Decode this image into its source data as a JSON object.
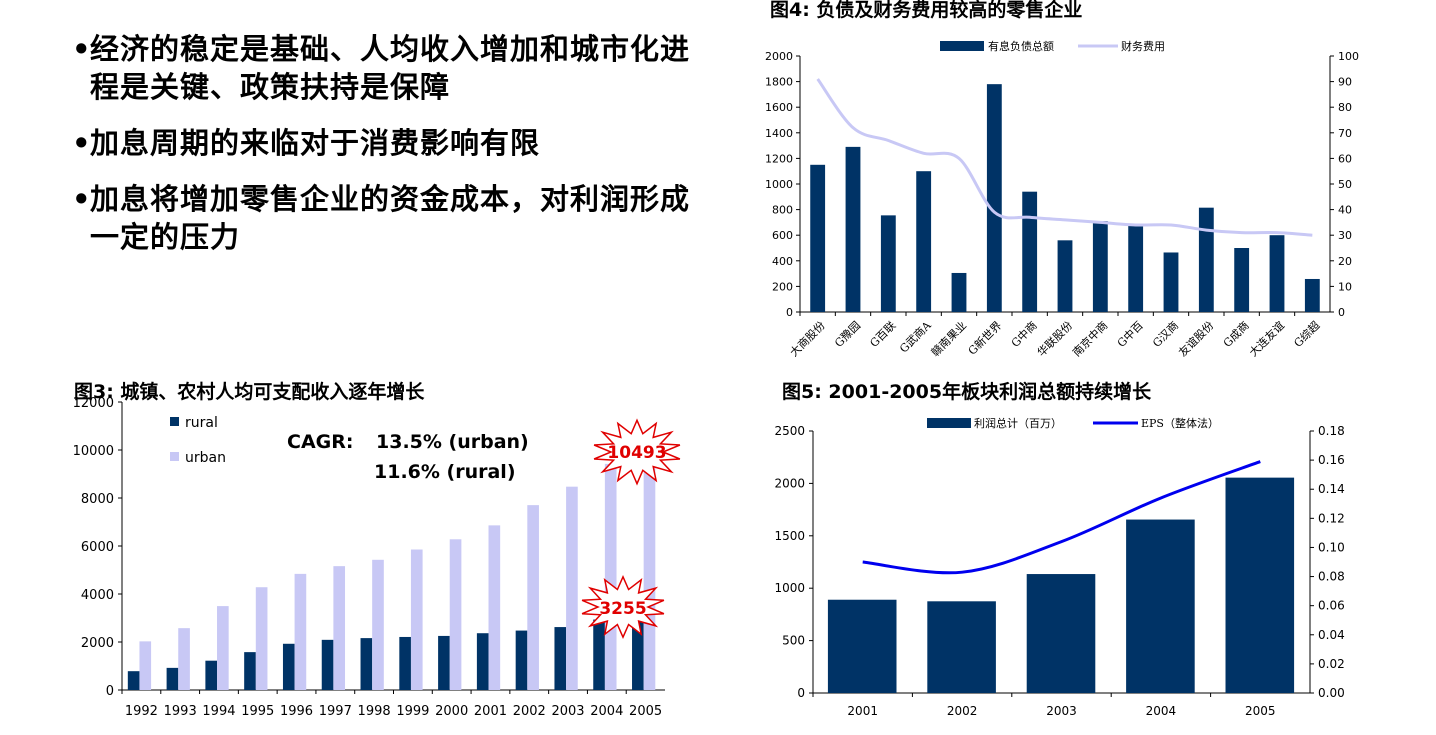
{
  "bullets": [
    "经济的稳定是基础、人均收入增加和城市化进程是关键、政策扶持是保障",
    "加息周期的来临对于消费影响有限",
    "加息将增加零售企业的资金成本，对利润形成一定的压力"
  ],
  "colors": {
    "navy": "#003366",
    "lavender": "#c8c8f5",
    "blue": "#0000ee",
    "red": "#e00000"
  },
  "chart_data": [
    {
      "type": "bar",
      "title": "图4:  负债及财务费用较高的零售企业",
      "categories": [
        "大商股份",
        "G豫园",
        "G百联",
        "G武商A",
        "赣南果业",
        "G新世界",
        "G中商",
        "华联股份",
        "南京中商",
        "G中百",
        "G汉商",
        "友谊股份",
        "G成商",
        "大连友谊",
        "G综超"
      ],
      "series": [
        {
          "name": "有息负债总额",
          "type": "bar",
          "axis": "left",
          "values": [
            1150,
            1290,
            755,
            1100,
            305,
            1780,
            940,
            560,
            710,
            690,
            465,
            815,
            500,
            600,
            258
          ]
        },
        {
          "name": "财务费用",
          "type": "line",
          "axis": "right",
          "values": [
            91,
            72,
            67,
            62,
            60,
            39,
            37,
            36,
            35,
            34,
            34,
            32,
            31,
            31,
            30
          ]
        }
      ],
      "ylim_left": [
        0,
        2000
      ],
      "yticks_left": [
        "0",
        "200",
        "400",
        "600",
        "800",
        "1000",
        "1200",
        "1400",
        "1600",
        "1800",
        "2000"
      ],
      "ylim_right": [
        0,
        100
      ],
      "yticks_right": [
        "0",
        "10",
        "20",
        "30",
        "40",
        "50",
        "60",
        "70",
        "80",
        "90",
        "100"
      ],
      "legend": "top-center"
    },
    {
      "type": "bar",
      "title": "图3:  城镇、农村人均可支配收入逐年增长",
      "categories": [
        "1992",
        "1993",
        "1994",
        "1995",
        "1996",
        "1997",
        "1998",
        "1999",
        "2000",
        "2001",
        "2002",
        "2003",
        "2004",
        "2005"
      ],
      "series": [
        {
          "name": "rural",
          "values": [
            784,
            922,
            1221,
            1578,
            1926,
            2090,
            2162,
            2210,
            2253,
            2366,
            2476,
            2622,
            2936,
            3255
          ]
        },
        {
          "name": "urban",
          "values": [
            2027,
            2577,
            3496,
            4283,
            4839,
            5160,
            5425,
            5854,
            6280,
            6860,
            7703,
            8472,
            9422,
            10493
          ]
        }
      ],
      "ylim": [
        0,
        12000
      ],
      "yticks": [
        "0",
        "2000",
        "4000",
        "6000",
        "8000",
        "10000",
        "12000"
      ],
      "legend": "top-left",
      "annotations": {
        "cagr_label": "CAGR:",
        "cagr_urban": "13.5% (urban)",
        "cagr_rural": "11.6% (rural)",
        "burst_urban": "10493",
        "burst_rural": "3255"
      }
    },
    {
      "type": "bar",
      "title": "图5:  2001-2005年板块利润总额持续增长",
      "categories": [
        "2001",
        "2002",
        "2003",
        "2004",
        "2005"
      ],
      "series": [
        {
          "name": "利润总计（百万）",
          "type": "bar",
          "axis": "left",
          "values": [
            890,
            875,
            1135,
            1655,
            2055
          ]
        },
        {
          "name": "EPS（整体法）",
          "type": "line",
          "axis": "right",
          "values": [
            0.09,
            0.083,
            0.104,
            0.134,
            0.159
          ]
        }
      ],
      "ylim_left": [
        0,
        2500
      ],
      "yticks_left": [
        "0",
        "500",
        "1000",
        "1500",
        "2000",
        "2500"
      ],
      "ylim_right": [
        0,
        0.18
      ],
      "yticks_right": [
        "0.00",
        "0.02",
        "0.04",
        "0.06",
        "0.08",
        "0.10",
        "0.12",
        "0.14",
        "0.16",
        "0.18"
      ],
      "legend": "top-center"
    }
  ]
}
